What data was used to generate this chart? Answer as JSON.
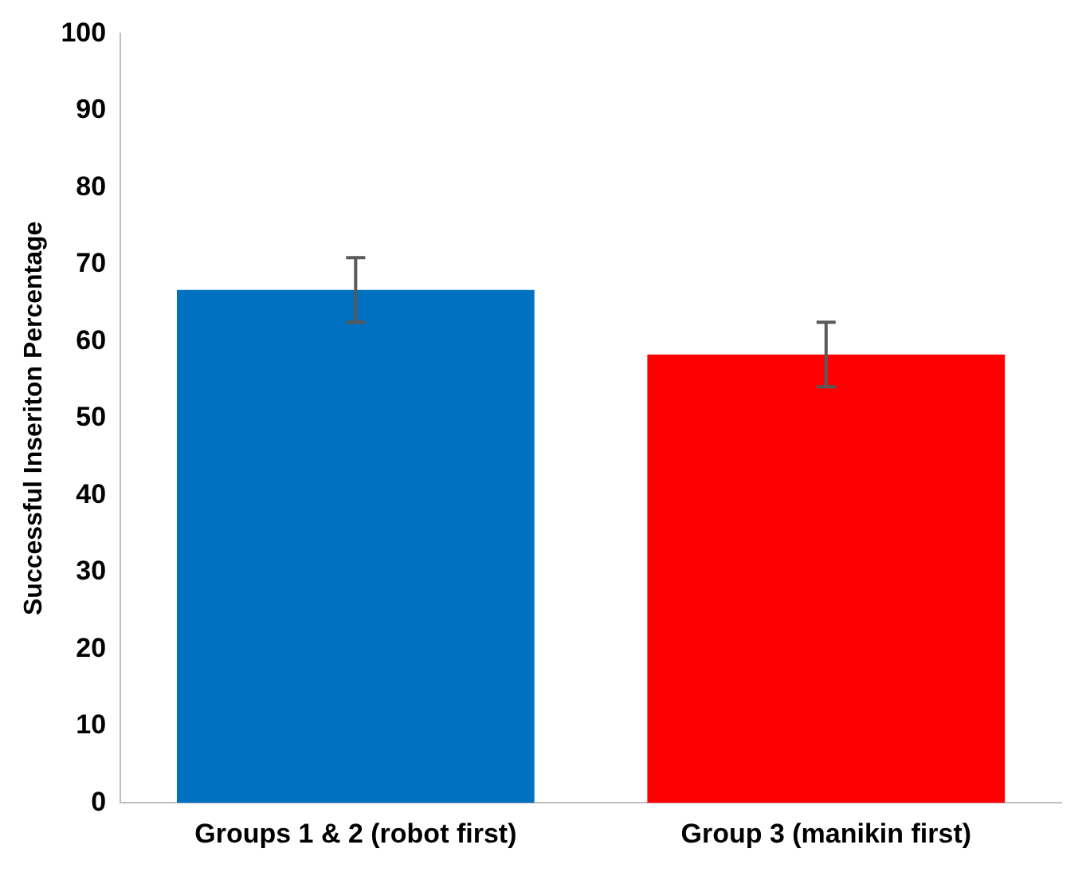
{
  "chart_data": {
    "type": "bar",
    "ylabel": "Successful Inseriton Percentage",
    "categories": [
      "Groups 1 & 2 (robot first)",
      "Group 3 (manikin first)"
    ],
    "values": [
      66.7,
      58.3
    ],
    "colors": [
      "#0070c0",
      "#ff0000"
    ],
    "errors": [
      4.2,
      4.2
    ],
    "ylim": [
      0,
      100
    ],
    "yticks": [
      0,
      10,
      20,
      30,
      40,
      50,
      60,
      70,
      80,
      90,
      100
    ],
    "grid": false,
    "legend": false
  }
}
